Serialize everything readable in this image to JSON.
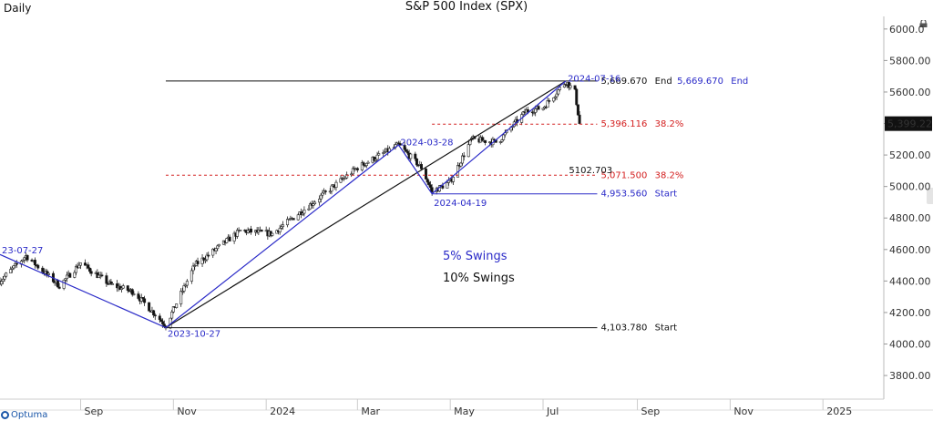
{
  "header": {
    "period": "Daily",
    "title": "S&P 500 Index (SPX)"
  },
  "logo": {
    "text": "Optuma"
  },
  "colors": {
    "blue": "#2b2bc8",
    "black": "#111111",
    "red": "#d42020",
    "candle_up": "#ffffff",
    "candle_down": "#111111"
  },
  "chart_data": {
    "type": "candlestick",
    "title": "S&P 500 Index (SPX)",
    "period": "Daily",
    "ylim": [
      3650,
      6080
    ],
    "y_ticks": [
      3800,
      4000,
      4200,
      4400,
      4600,
      4800,
      5000,
      5200,
      5400,
      5600,
      5800,
      6000
    ],
    "y_tick_labels": [
      "3800.00",
      "4000.00",
      "4200.00",
      "4400.00",
      "4600.00",
      "4800.00",
      "5000.00",
      "5200.00",
      "5400.00",
      "5600.00",
      "5800.00",
      "6000.0"
    ],
    "x_ticks": [
      "Sep",
      "Nov",
      "2024",
      "Mar",
      "May",
      "Jul",
      "Sep",
      "Nov",
      "2025"
    ],
    "x_tick_dates": [
      "2023-09-01",
      "2023-11-01",
      "2024-01-01",
      "2024-03-01",
      "2024-05-01",
      "2024-07-01",
      "2024-09-01",
      "2024-11-01",
      "2025-01-01"
    ],
    "xlim": [
      "2023-07-10",
      "2025-02-10"
    ],
    "last_price": "5,399.22",
    "path": [
      [
        "2023-07-10",
        4400
      ],
      [
        "2023-07-27",
        4560
      ],
      [
        "2023-08-18",
        4370
      ],
      [
        "2023-09-01",
        4515
      ],
      [
        "2023-09-20",
        4380
      ],
      [
        "2023-10-06",
        4330
      ],
      [
        "2023-10-27",
        4117
      ],
      [
        "2023-11-15",
        4500
      ],
      [
        "2023-12-15",
        4720
      ],
      [
        "2024-01-05",
        4700
      ],
      [
        "2024-02-01",
        4900
      ],
      [
        "2024-03-01",
        5120
      ],
      [
        "2024-03-28",
        5264
      ],
      [
        "2024-04-12",
        5120
      ],
      [
        "2024-04-19",
        4967
      ],
      [
        "2024-05-01",
        5030
      ],
      [
        "2024-05-15",
        5300
      ],
      [
        "2024-06-01",
        5280
      ],
      [
        "2024-06-20",
        5480
      ],
      [
        "2024-07-01",
        5500
      ],
      [
        "2024-07-16",
        5667
      ],
      [
        "2024-07-22",
        5600
      ],
      [
        "2024-07-25",
        5399
      ]
    ],
    "swings_5pct": [
      [
        "2023-07-10",
        4568
      ],
      [
        "2023-10-27",
        4104
      ],
      [
        "2024-03-28",
        5264
      ],
      [
        "2024-04-19",
        4954
      ],
      [
        "2024-07-16",
        5670
      ]
    ],
    "swings_10pct": [
      [
        "2023-10-27",
        4104
      ],
      [
        "2024-07-16",
        5670
      ]
    ],
    "swing_labels": [
      {
        "text": "23-07-27",
        "date": "2023-07-10",
        "value": 4600
      },
      {
        "text": "2023-10-27",
        "date": "2023-10-27",
        "value": 4070
      },
      {
        "text": "2024-03-28",
        "date": "2024-03-28",
        "value": 5285
      },
      {
        "text": "2024-04-19",
        "date": "2024-04-19",
        "value": 4900
      },
      {
        "text": "2024-07-16",
        "date": "2024-07-16",
        "value": 5690
      }
    ],
    "hlines": [
      {
        "value": 5669.67,
        "from": "2023-10-27",
        "color": "black",
        "dash": false,
        "labels": [
          {
            "text": "5,669.670",
            "color": "black"
          },
          {
            "text": "End",
            "color": "black"
          },
          {
            "text": "5,669.670",
            "color": "blue"
          },
          {
            "text": "End",
            "color": "blue"
          }
        ]
      },
      {
        "value": 5396.116,
        "from": "2024-04-19",
        "color": "red",
        "dash": true,
        "labels": [
          {
            "text": "5,396.116",
            "color": "red"
          },
          {
            "text": "38.2%",
            "color": "red"
          }
        ]
      },
      {
        "value": 5071.5,
        "from": "2023-10-27",
        "color": "red",
        "dash": true,
        "labels": [
          {
            "text": "5,071.500",
            "color": "red"
          },
          {
            "text": "38.2%",
            "color": "red"
          }
        ]
      },
      {
        "value": 4953.56,
        "from": "2024-04-19",
        "color": "blue",
        "dash": false,
        "labels": [
          {
            "text": "4,953.560",
            "color": "blue"
          },
          {
            "text": "Start",
            "color": "blue"
          }
        ]
      },
      {
        "value": 4103.78,
        "from": "2023-10-27",
        "color": "black",
        "dash": false,
        "labels": [
          {
            "text": "4,103.780",
            "color": "black"
          },
          {
            "text": "Start",
            "color": "black"
          }
        ]
      }
    ],
    "extra_label": {
      "text": "5102.703",
      "value": 5102.703
    },
    "legend": [
      {
        "text": "5% Swings",
        "color": "blue"
      },
      {
        "text": "10% Swings",
        "color": "black"
      }
    ]
  }
}
